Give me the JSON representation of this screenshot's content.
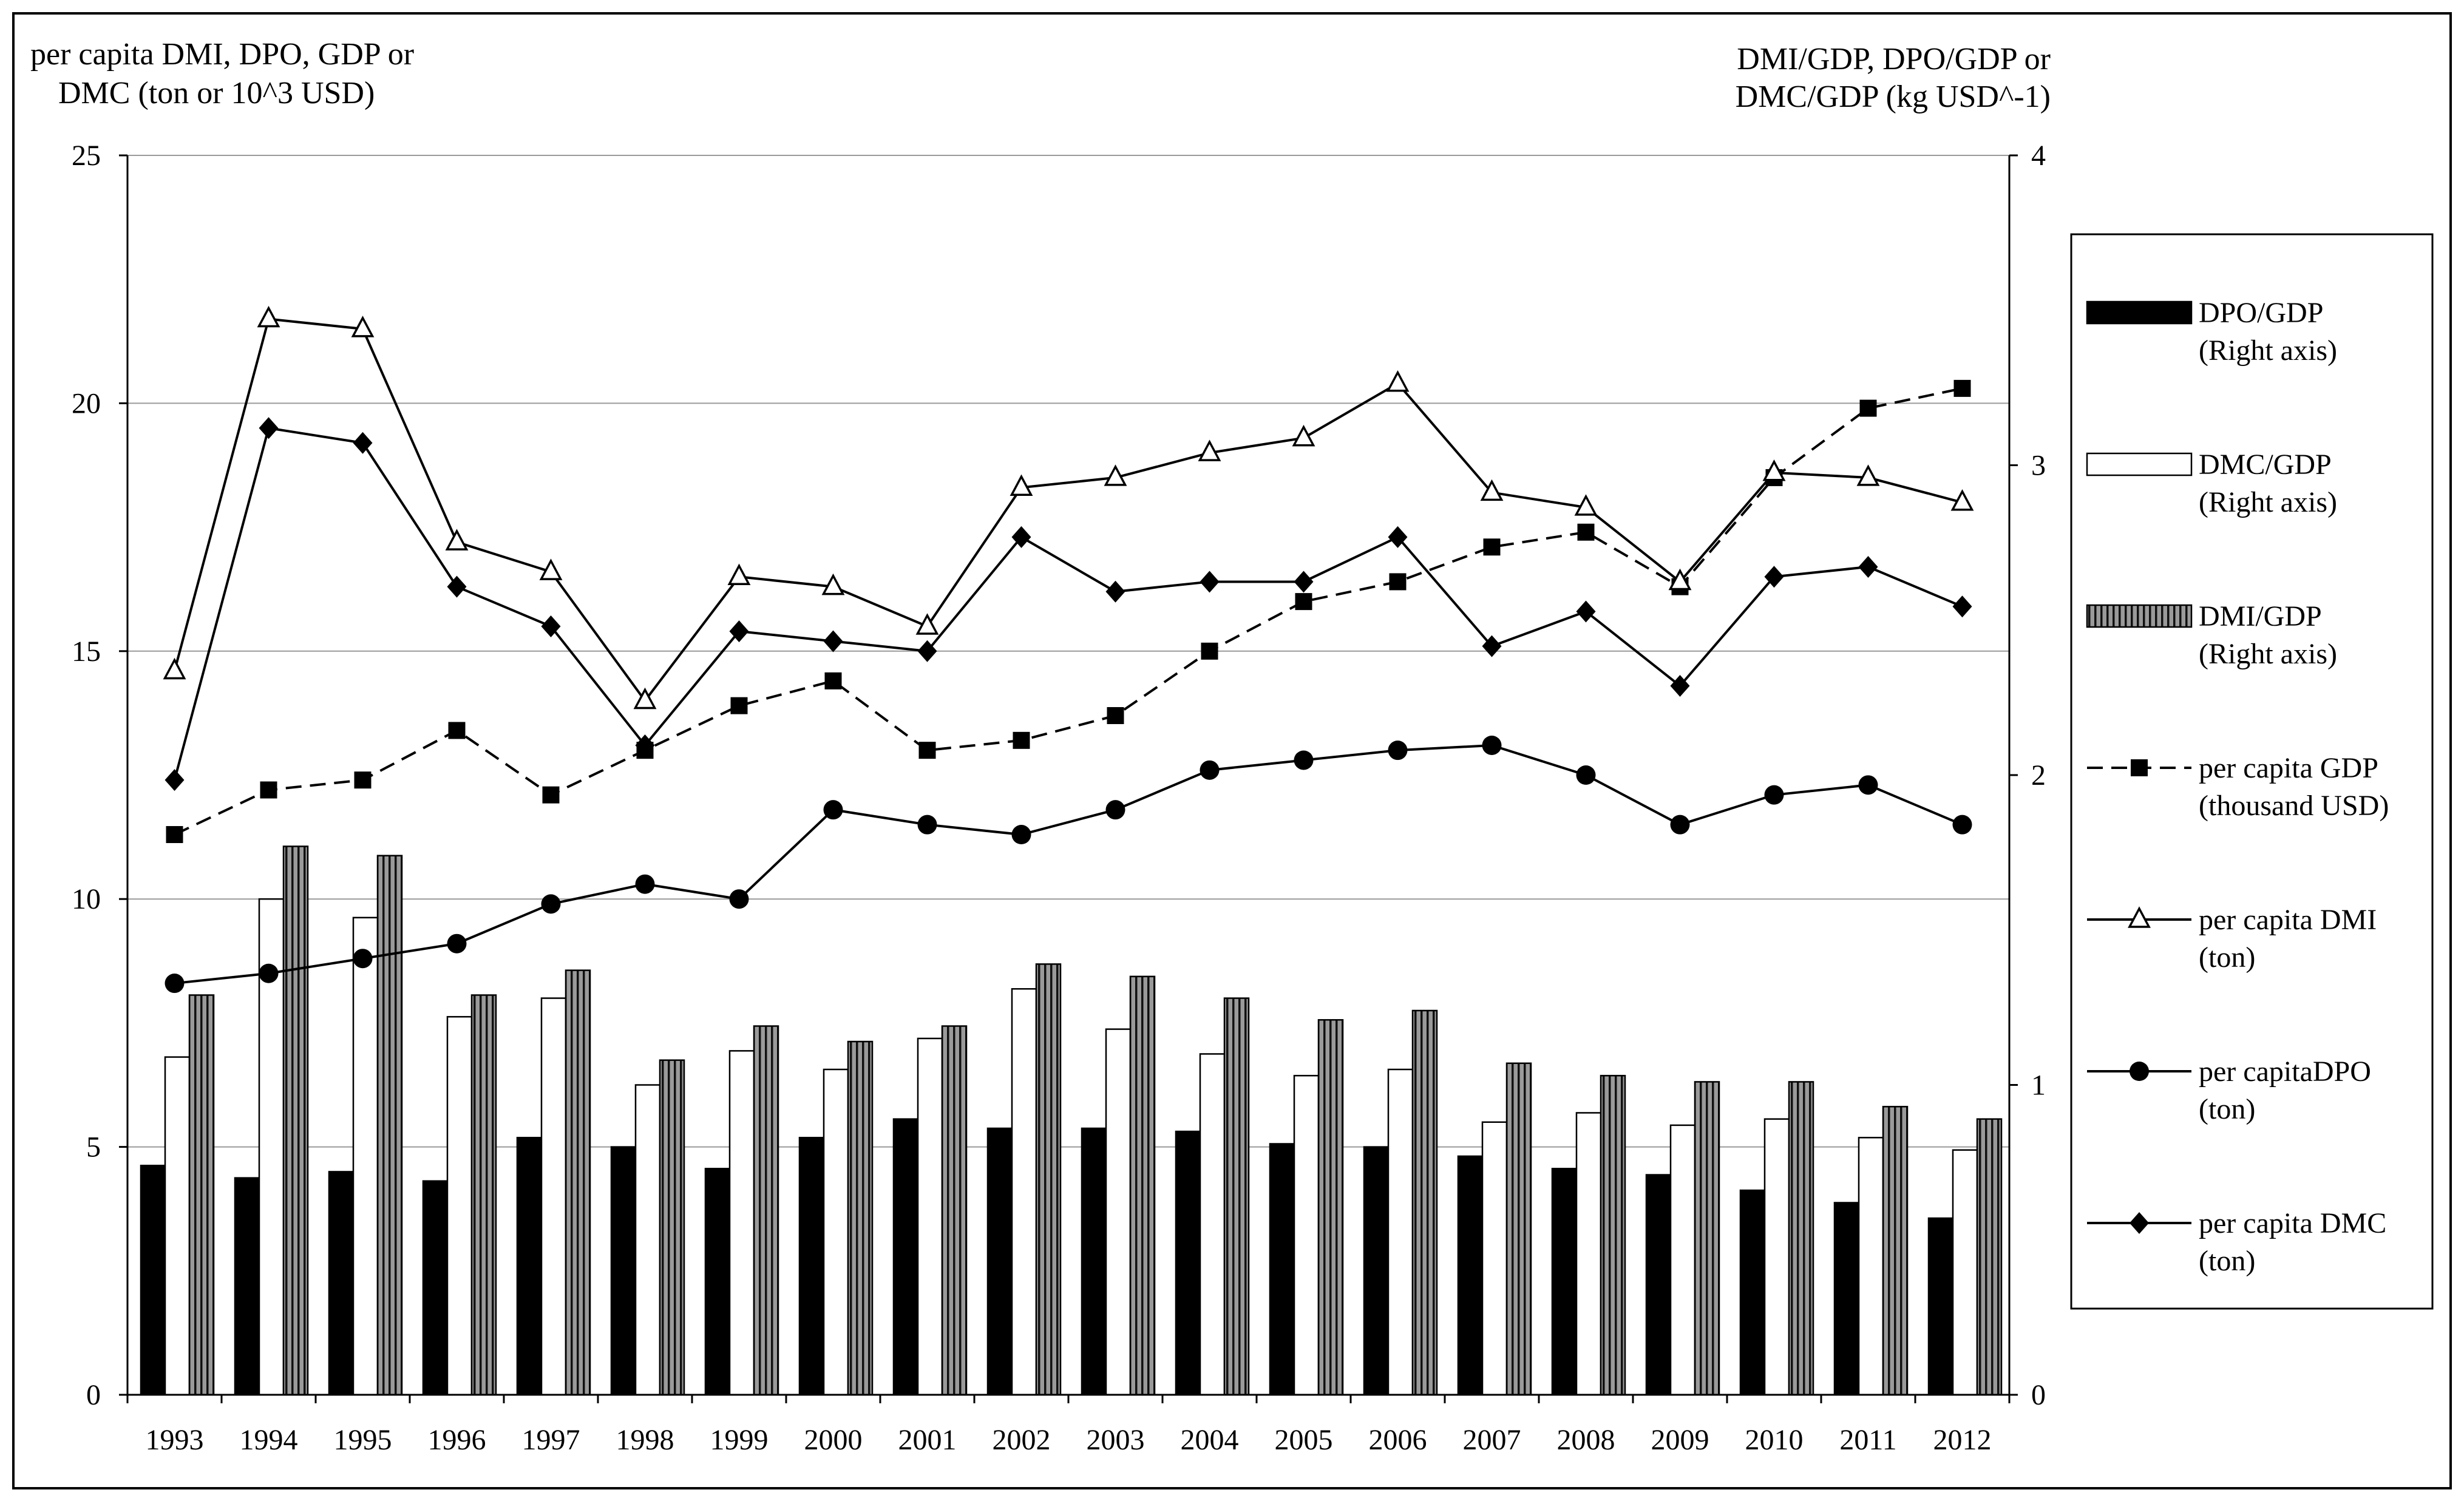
{
  "chart_data": {
    "type": "bar+line",
    "title": "",
    "left_axis": {
      "label_line1": "per capita DMI, DPO, GDP or",
      "label_line2": "DMC  (ton or 10^3 USD)",
      "range": [
        0,
        25
      ],
      "ticks": [
        "0",
        "5",
        "10",
        "15",
        "20",
        "25"
      ]
    },
    "right_axis": {
      "label_line1": "DMI/GDP,  DPO/GDP or",
      "label_line2": "DMC/GDP  (kg USD^-1)",
      "range": [
        0,
        4
      ],
      "ticks": [
        "0",
        "1",
        "2",
        "3",
        "4"
      ]
    },
    "categories": [
      "1993",
      "1994",
      "1995",
      "1996",
      "1997",
      "1998",
      "1999",
      "2000",
      "2001",
      "2002",
      "2003",
      "2004",
      "2005",
      "2006",
      "2007",
      "2008",
      "2009",
      "2010",
      "2011",
      "2012"
    ],
    "bar_series": [
      {
        "key": "dpo_gdp",
        "name": "DPO/GDP",
        "note": "(Right axis)",
        "style": "solid-black",
        "values": [
          0.74,
          0.7,
          0.72,
          0.69,
          0.83,
          0.8,
          0.73,
          0.83,
          0.89,
          0.86,
          0.86,
          0.85,
          0.81,
          0.8,
          0.77,
          0.73,
          0.71,
          0.66,
          0.62,
          0.57
        ]
      },
      {
        "key": "dmc_gdp",
        "name": "DMC/GDP",
        "note": "(Right axis)",
        "style": "white",
        "values": [
          1.09,
          1.6,
          1.54,
          1.22,
          1.28,
          1.0,
          1.11,
          1.05,
          1.15,
          1.31,
          1.18,
          1.1,
          1.03,
          1.05,
          0.88,
          0.91,
          0.87,
          0.89,
          0.83,
          0.79
        ]
      },
      {
        "key": "dmi_gdp",
        "name": "DMI/GDP",
        "note": "(Right axis)",
        "style": "striped-gray",
        "values": [
          1.29,
          1.77,
          1.74,
          1.29,
          1.37,
          1.08,
          1.19,
          1.14,
          1.19,
          1.39,
          1.35,
          1.28,
          1.21,
          1.24,
          1.07,
          1.03,
          1.01,
          1.01,
          0.93,
          0.89
        ]
      }
    ],
    "line_series": [
      {
        "key": "gdp",
        "name": "per capita GDP",
        "note": "(thousand USD)",
        "marker": "square",
        "dash": true,
        "values": [
          11.3,
          12.2,
          12.4,
          13.4,
          12.1,
          13.0,
          13.9,
          14.4,
          13.0,
          13.2,
          13.7,
          15.0,
          16.0,
          16.4,
          17.1,
          17.4,
          16.3,
          18.5,
          19.9,
          20.3
        ]
      },
      {
        "key": "dmi",
        "name": "per capita DMI",
        "note": "(ton)",
        "marker": "triangle",
        "dash": false,
        "values": [
          14.6,
          21.7,
          21.5,
          17.2,
          16.6,
          14.0,
          16.5,
          16.3,
          15.5,
          18.3,
          18.5,
          19.0,
          19.3,
          20.4,
          18.2,
          17.9,
          16.4,
          18.6,
          18.5,
          18.0
        ]
      },
      {
        "key": "dpo",
        "name": "per capitaDPO",
        "note": "(ton)",
        "marker": "circle",
        "dash": false,
        "values": [
          8.3,
          8.5,
          8.8,
          9.1,
          9.9,
          10.3,
          10.0,
          11.8,
          11.5,
          11.3,
          11.8,
          12.6,
          12.8,
          13.0,
          13.1,
          12.5,
          11.5,
          12.1,
          12.3,
          11.5
        ]
      },
      {
        "key": "dmc",
        "name": "per capita DMC",
        "note": "(ton)",
        "marker": "diamond",
        "dash": false,
        "values": [
          12.4,
          19.5,
          19.2,
          16.3,
          15.5,
          13.1,
          15.4,
          15.2,
          15.0,
          17.3,
          16.2,
          16.4,
          16.4,
          17.3,
          15.1,
          15.8,
          14.3,
          16.5,
          16.7,
          15.9
        ]
      }
    ],
    "gridlines": "horizontal",
    "legend_position": "right"
  }
}
